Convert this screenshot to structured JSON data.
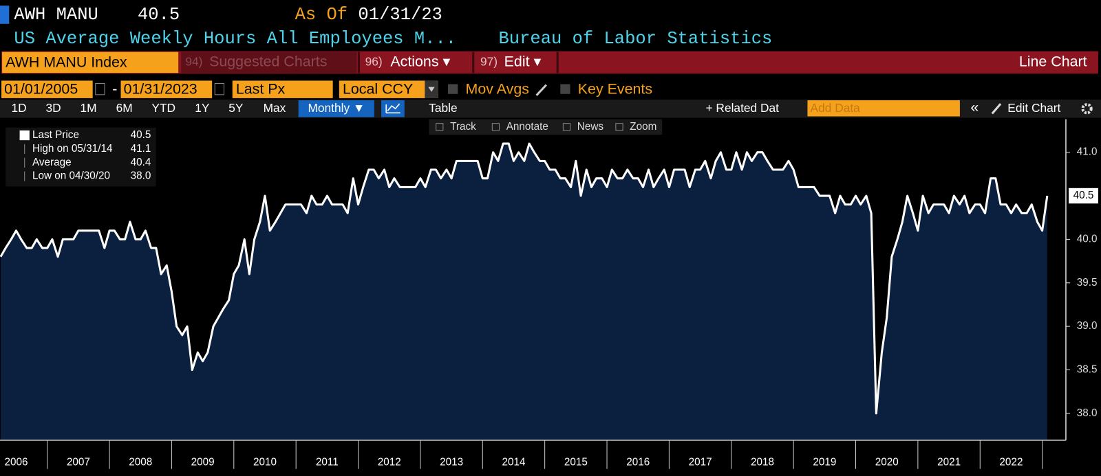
{
  "header": {
    "ticker": "AWH MANU",
    "last": "40.5",
    "as_of_label": "As Of",
    "as_of_date": "01/31/23",
    "description": "US Average Weekly Hours All Employees M...",
    "source": "Bureau of Labor Statistics"
  },
  "toolbar": {
    "security": "AWH MANU Index",
    "suggested_num": "94)",
    "suggested": "Suggested Charts",
    "actions_num": "96)",
    "actions": "Actions ▾",
    "edit_num": "97)",
    "edit": "Edit ▾",
    "view": "Line Chart"
  },
  "controls": {
    "start_date": "01/01/2005",
    "dash": "-",
    "end_date": "01/31/2023",
    "field": "Last Px",
    "currency": "Local CCY",
    "mov_avgs": "Mov Avgs",
    "key_events": "Key Events"
  },
  "ranges": [
    "1D",
    "3D",
    "1M",
    "6M",
    "YTD",
    "1Y",
    "5Y",
    "Max"
  ],
  "period": "Monthly ▼",
  "table": "Table",
  "related": "+ Related Dat",
  "add_data": "Add Data",
  "collapse": "«",
  "edit_chart": "Edit Chart",
  "chart_tools": [
    "Track",
    "Annotate",
    "News",
    "Zoom"
  ],
  "stats": [
    {
      "label": "Last Price",
      "value": "40.5"
    },
    {
      "label": "High on 05/31/14",
      "value": "41.1"
    },
    {
      "label": "Average",
      "value": "40.4"
    },
    {
      "label": "Low on 04/30/20",
      "value": "38.0"
    }
  ],
  "chart_data": {
    "type": "area",
    "color": "#ffffff",
    "fill": "#0b1f3f",
    "xlim": [
      2006.24,
      2023.38
    ],
    "ylim": [
      37.7,
      41.38
    ],
    "xticks": [
      {
        "value": 2006.5,
        "label": "2006"
      },
      {
        "value": 2007.5,
        "label": "2007"
      },
      {
        "value": 2008.5,
        "label": "2008"
      },
      {
        "value": 2009.5,
        "label": "2009"
      },
      {
        "value": 2010.5,
        "label": "2010"
      },
      {
        "value": 2011.5,
        "label": "2011"
      },
      {
        "value": 2012.5,
        "label": "2012"
      },
      {
        "value": 2013.5,
        "label": "2013"
      },
      {
        "value": 2014.5,
        "label": "2014"
      },
      {
        "value": 2015.5,
        "label": "2015"
      },
      {
        "value": 2016.5,
        "label": "2016"
      },
      {
        "value": 2017.5,
        "label": "2017"
      },
      {
        "value": 2018.5,
        "label": "2018"
      },
      {
        "value": 2019.5,
        "label": "2019"
      },
      {
        "value": 2020.5,
        "label": "2020"
      },
      {
        "value": 2021.5,
        "label": "2021"
      },
      {
        "value": 2022.5,
        "label": "2022"
      }
    ],
    "yticks": [
      {
        "value": 38,
        "label": "38.0"
      },
      38.5,
      {
        "value": 39,
        "label": "39.0"
      },
      39.5,
      {
        "value": 40,
        "label": "40.0"
      },
      {
        "value": 41,
        "label": "41.0"
      }
    ],
    "x": [
      2006.25,
      2006.33,
      2006.42,
      2006.5,
      2006.58,
      2006.67,
      2006.75,
      2006.83,
      2006.92,
      2007,
      2007.08,
      2007.17,
      2007.25,
      2007.33,
      2007.42,
      2007.5,
      2007.58,
      2007.67,
      2007.75,
      2007.83,
      2007.92,
      2008,
      2008.08,
      2008.17,
      2008.25,
      2008.33,
      2008.42,
      2008.5,
      2008.58,
      2008.67,
      2008.75,
      2008.83,
      2008.92,
      2009,
      2009.08,
      2009.17,
      2009.25,
      2009.33,
      2009.42,
      2009.5,
      2009.58,
      2009.67,
      2009.75,
      2009.83,
      2009.92,
      2010,
      2010.08,
      2010.17,
      2010.25,
      2010.33,
      2010.42,
      2010.5,
      2010.58,
      2010.67,
      2010.75,
      2010.83,
      2010.92,
      2011,
      2011.08,
      2011.17,
      2011.25,
      2011.33,
      2011.42,
      2011.5,
      2011.58,
      2011.67,
      2011.75,
      2011.83,
      2011.92,
      2012,
      2012.08,
      2012.17,
      2012.25,
      2012.33,
      2012.42,
      2012.5,
      2012.58,
      2012.67,
      2012.75,
      2012.83,
      2012.92,
      2013,
      2013.08,
      2013.17,
      2013.25,
      2013.33,
      2013.42,
      2013.5,
      2013.58,
      2013.67,
      2013.75,
      2013.83,
      2013.92,
      2014,
      2014.08,
      2014.17,
      2014.25,
      2014.33,
      2014.42,
      2014.5,
      2014.58,
      2014.67,
      2014.75,
      2014.83,
      2014.92,
      2015,
      2015.08,
      2015.17,
      2015.25,
      2015.33,
      2015.42,
      2015.5,
      2015.58,
      2015.67,
      2015.75,
      2015.83,
      2015.92,
      2016,
      2016.08,
      2016.17,
      2016.25,
      2016.33,
      2016.42,
      2016.5,
      2016.58,
      2016.67,
      2016.75,
      2016.83,
      2016.92,
      2017,
      2017.08,
      2017.17,
      2017.25,
      2017.33,
      2017.42,
      2017.5,
      2017.58,
      2017.67,
      2017.75,
      2017.83,
      2017.92,
      2018,
      2018.08,
      2018.17,
      2018.25,
      2018.33,
      2018.42,
      2018.5,
      2018.58,
      2018.67,
      2018.75,
      2018.83,
      2018.92,
      2019,
      2019.08,
      2019.17,
      2019.25,
      2019.33,
      2019.42,
      2019.5,
      2019.58,
      2019.67,
      2019.75,
      2019.83,
      2019.92,
      2020,
      2020.08,
      2020.17,
      2020.25,
      2020.33,
      2020.42,
      2020.5,
      2020.58,
      2020.67,
      2020.75,
      2020.83,
      2020.92,
      2021,
      2021.08,
      2021.17,
      2021.25,
      2021.33,
      2021.42,
      2021.5,
      2021.58,
      2021.67,
      2021.75,
      2021.83,
      2021.92,
      2022,
      2022.08,
      2022.17,
      2022.25,
      2022.33,
      2022.42,
      2022.5,
      2022.58,
      2022.67,
      2022.75,
      2022.83,
      2022.92,
      2023,
      2023.08
    ],
    "values": [
      39.8,
      39.9,
      40.0,
      40.1,
      40.0,
      39.9,
      39.9,
      40.0,
      39.9,
      39.9,
      40.0,
      39.8,
      40.0,
      40.0,
      40.0,
      40.1,
      40.1,
      40.1,
      40.1,
      40.1,
      39.9,
      40.1,
      40.1,
      40.0,
      40.0,
      40.2,
      40.0,
      40.0,
      40.1,
      39.9,
      39.9,
      39.6,
      39.7,
      39.4,
      39.0,
      38.9,
      39.0,
      38.5,
      38.7,
      38.6,
      38.7,
      39.0,
      39.1,
      39.2,
      39.3,
      39.6,
      39.7,
      40.0,
      39.6,
      40.0,
      40.2,
      40.5,
      40.1,
      40.2,
      40.3,
      40.4,
      40.4,
      40.4,
      40.4,
      40.3,
      40.5,
      40.4,
      40.4,
      40.5,
      40.4,
      40.4,
      40.4,
      40.3,
      40.7,
      40.4,
      40.6,
      40.8,
      40.8,
      40.7,
      40.8,
      40.6,
      40.7,
      40.6,
      40.6,
      40.6,
      40.6,
      40.7,
      40.6,
      40.8,
      40.8,
      40.7,
      40.8,
      40.7,
      40.9,
      40.9,
      40.9,
      40.9,
      40.9,
      40.7,
      40.7,
      41.0,
      40.9,
      41.1,
      41.1,
      40.9,
      41.0,
      40.9,
      41.1,
      41.0,
      40.9,
      40.9,
      40.8,
      40.8,
      40.7,
      40.7,
      40.6,
      40.9,
      40.5,
      40.8,
      40.6,
      40.7,
      40.7,
      40.6,
      40.8,
      40.7,
      40.7,
      40.8,
      40.7,
      40.7,
      40.6,
      40.8,
      40.6,
      40.7,
      40.8,
      40.6,
      40.8,
      40.8,
      40.8,
      40.6,
      40.8,
      40.8,
      40.9,
      40.7,
      40.9,
      41.0,
      40.8,
      40.8,
      41.0,
      40.8,
      41.0,
      40.9,
      41.0,
      41.0,
      40.9,
      40.8,
      40.8,
      40.8,
      40.9,
      40.8,
      40.6,
      40.6,
      40.6,
      40.6,
      40.5,
      40.5,
      40.5,
      40.3,
      40.5,
      40.4,
      40.4,
      40.5,
      40.4,
      40.5,
      40.3,
      38.0,
      38.7,
      39.1,
      39.8,
      40.0,
      40.2,
      40.5,
      40.3,
      40.1,
      40.5,
      40.3,
      40.4,
      40.4,
      40.4,
      40.3,
      40.5,
      40.4,
      40.5,
      40.3,
      40.4,
      40.4,
      40.3,
      40.7,
      40.7,
      40.4,
      40.4,
      40.3,
      40.4,
      40.3,
      40.3,
      40.4,
      40.2,
      40.1,
      40.5
    ]
  }
}
